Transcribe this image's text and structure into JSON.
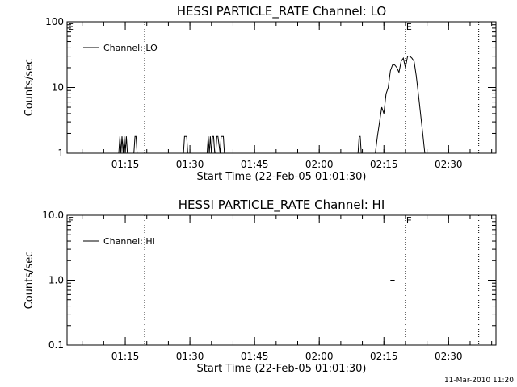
{
  "chart_data": [
    {
      "type": "line",
      "title": "HESSI PARTICLE_RATE Channel: LO",
      "xlabel": "Start Time (22-Feb-05 01:01:30)",
      "ylabel": "Counts/sec",
      "yscale": "log",
      "xlim": [
        "01:01:30",
        "02:41:00"
      ],
      "ylim": [
        1,
        100
      ],
      "x_ticks": [
        "01:15",
        "01:30",
        "01:45",
        "02:00",
        "02:15",
        "02:30"
      ],
      "y_ticks": [
        "1",
        "10",
        "100"
      ],
      "legend": {
        "entries": [
          "Channel: LO"
        ],
        "position": "top-left"
      },
      "markers": [
        {
          "time": "01:19:30",
          "label": ""
        },
        {
          "time": "02:20:00",
          "label": "E"
        },
        {
          "time": "02:37:00",
          "label": ""
        }
      ],
      "corner_label": "E",
      "series": [
        {
          "name": "Channel: LO",
          "x": [
            "01:13:30",
            "01:13:45",
            "01:14:00",
            "01:14:15",
            "01:14:30",
            "01:14:45",
            "01:15:00",
            "01:15:15",
            "01:15:30",
            "01:15:45",
            "01:17:00",
            "01:17:15",
            "01:17:30",
            "01:17:45",
            "01:28:30",
            "01:28:45",
            "01:29:00",
            "01:29:15",
            "01:29:30",
            "01:34:00",
            "01:34:15",
            "01:34:30",
            "01:34:45",
            "01:35:00",
            "01:35:15",
            "01:35:30",
            "01:35:45",
            "01:36:00",
            "01:36:15",
            "01:36:30",
            "01:37:00",
            "01:37:15",
            "01:37:30",
            "01:37:45",
            "01:38:00",
            "02:09:00",
            "02:09:15",
            "02:09:30",
            "02:09:45",
            "02:13:00",
            "02:13:30",
            "02:14:00",
            "02:14:30",
            "02:15:00",
            "02:15:30",
            "02:16:00",
            "02:16:30",
            "02:17:00",
            "02:17:30",
            "02:18:00",
            "02:18:30",
            "02:19:00",
            "02:19:30",
            "02:20:00",
            "02:20:30",
            "02:21:00",
            "02:21:30",
            "02:22:00",
            "02:22:30",
            "02:23:00",
            "02:23:30",
            "02:24:00",
            "02:24:30",
            "02:25:00"
          ],
          "y": [
            1,
            1.8,
            1,
            1.8,
            1,
            1.8,
            1,
            1.8,
            1,
            1,
            1,
            1.8,
            1.8,
            1,
            1,
            1.8,
            1.8,
            1.8,
            1,
            1,
            1.8,
            1,
            1.8,
            1,
            1.8,
            1.8,
            1,
            1,
            1.8,
            1.8,
            1,
            1.8,
            1.8,
            1.8,
            1,
            1,
            1.8,
            1.8,
            1,
            1,
            1.8,
            3,
            5,
            4,
            8,
            10,
            18,
            22,
            22,
            20,
            17,
            25,
            28,
            20,
            30,
            30,
            28,
            25,
            15,
            8,
            4,
            2,
            1,
            1
          ]
        }
      ]
    },
    {
      "type": "line",
      "title": "HESSI PARTICLE_RATE Channel: HI",
      "xlabel": "Start Time (22-Feb-05 01:01:30)",
      "ylabel": "Counts/sec",
      "yscale": "log",
      "xlim": [
        "01:01:30",
        "02:41:00"
      ],
      "ylim": [
        0.1,
        10
      ],
      "x_ticks": [
        "01:15",
        "01:30",
        "01:45",
        "02:00",
        "02:15",
        "02:30"
      ],
      "y_ticks": [
        "0.1",
        "1.0",
        "10.0"
      ],
      "legend": {
        "entries": [
          "Channel: HI"
        ],
        "position": "top-left"
      },
      "markers": [
        {
          "time": "01:19:30",
          "label": ""
        },
        {
          "time": "02:20:00",
          "label": "E"
        },
        {
          "time": "02:37:00",
          "label": ""
        }
      ],
      "corner_label": "E",
      "series": [
        {
          "name": "Channel: HI",
          "x": [
            "02:16:30",
            "02:17:30"
          ],
          "y": [
            1,
            1
          ]
        }
      ]
    }
  ],
  "footer": "11-Mar-2010 11:20"
}
